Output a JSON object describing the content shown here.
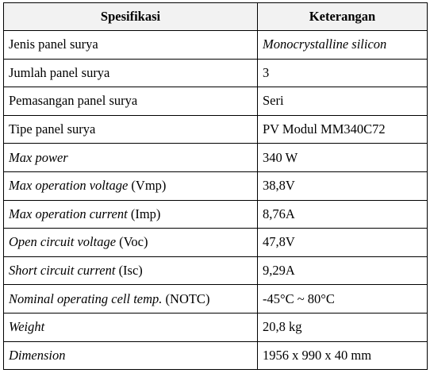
{
  "table": {
    "headers": [
      "Spesifikasi",
      "Keterangan"
    ],
    "rows": [
      {
        "spec_italic": "",
        "spec_plain": "Jenis panel surya",
        "value": "Monocrystalline silicon",
        "value_italic": true
      },
      {
        "spec_italic": "",
        "spec_plain": "Jumlah panel surya",
        "value": "3",
        "value_italic": false
      },
      {
        "spec_italic": "",
        "spec_plain": "Pemasangan panel surya",
        "value": "Seri",
        "value_italic": false
      },
      {
        "spec_italic": "",
        "spec_plain": "Tipe panel surya",
        "value": "PV Modul MM340C72",
        "value_italic": false
      },
      {
        "spec_italic": "Max power",
        "spec_plain": "",
        "value": "340 W",
        "value_italic": false
      },
      {
        "spec_italic": "Max operation voltage",
        "spec_plain": " (Vmp)",
        "value": "38,8V",
        "value_italic": false
      },
      {
        "spec_italic": "Max operation current",
        "spec_plain": " (Imp)",
        "value": "8,76A",
        "value_italic": false
      },
      {
        "spec_italic": "Open circuit voltage",
        "spec_plain": " (Voc)",
        "value": "47,8V",
        "value_italic": false
      },
      {
        "spec_italic": "Short circuit current",
        "spec_plain": " (Isc)",
        "value": "9,29A",
        "value_italic": false
      },
      {
        "spec_italic": "Nominal operating cell temp.",
        "spec_plain": " (NOTC)",
        "value": "-45°C ~ 80°C",
        "value_italic": false
      },
      {
        "spec_italic": "Weight",
        "spec_plain": "",
        "value": "20,8 kg",
        "value_italic": false
      },
      {
        "spec_italic": "Dimension",
        "spec_plain": "",
        "value": "1956 x 990 x 40 mm",
        "value_italic": false
      }
    ]
  }
}
